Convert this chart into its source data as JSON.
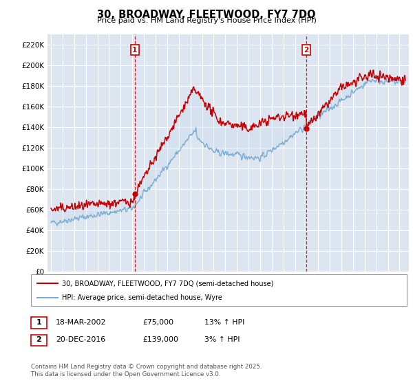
{
  "title": "30, BROADWAY, FLEETWOOD, FY7 7DQ",
  "subtitle": "Price paid vs. HM Land Registry's House Price Index (HPI)",
  "red_line_color": "#cc0000",
  "blue_line_color": "#7aadd4",
  "fill_color": "#c5d8ee",
  "vline_color": "#cc0000",
  "marker1_date": 2002.21,
  "marker2_date": 2016.97,
  "marker1_value": 75000,
  "marker2_value": 139000,
  "legend_entry1": "30, BROADWAY, FLEETWOOD, FY7 7DQ (semi-detached house)",
  "legend_entry2": "HPI: Average price, semi-detached house, Wyre",
  "table_row1": [
    "1",
    "18-MAR-2002",
    "£75,000",
    "13% ↑ HPI"
  ],
  "table_row2": [
    "2",
    "20-DEC-2016",
    "£139,000",
    "3% ↑ HPI"
  ],
  "footnote": "Contains HM Land Registry data © Crown copyright and database right 2025.\nThis data is licensed under the Open Government Licence v3.0.",
  "background_color": "#ffffff",
  "plot_bg_color": "#dde6f0",
  "grid_color": "#ffffff",
  "yticks": [
    0,
    20000,
    40000,
    60000,
    80000,
    100000,
    120000,
    140000,
    160000,
    180000,
    200000,
    220000
  ],
  "ytick_labels": [
    "£0",
    "£20K",
    "£40K",
    "£60K",
    "£80K",
    "£100K",
    "£120K",
    "£140K",
    "£160K",
    "£180K",
    "£200K",
    "£220K"
  ],
  "xlim_start": 1994.7,
  "xlim_end": 2025.8,
  "ylim_max": 230000
}
